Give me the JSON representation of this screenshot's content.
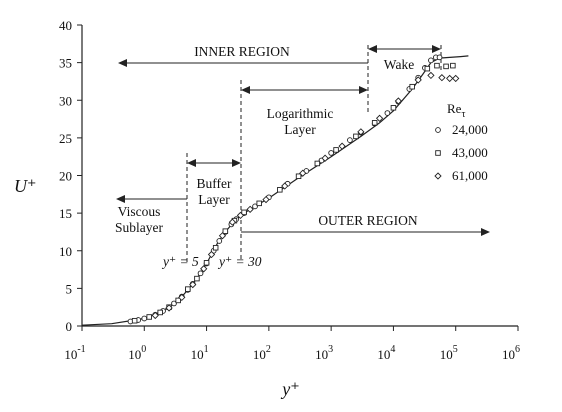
{
  "chart_data": {
    "type": "scatter",
    "xlabel": "y⁺",
    "ylabel": "U⁺",
    "xscale": "log",
    "xlim_exp": [
      -1,
      6
    ],
    "ylim": [
      0,
      40
    ],
    "xticks": [
      {
        "base": "10",
        "exp": "-1"
      },
      {
        "base": "10",
        "exp": "0"
      },
      {
        "base": "10",
        "exp": "1"
      },
      {
        "base": "10",
        "exp": "2"
      },
      {
        "base": "10",
        "exp": "3"
      },
      {
        "base": "10",
        "exp": "4"
      },
      {
        "base": "10",
        "exp": "5"
      },
      {
        "base": "10",
        "exp": "6"
      }
    ],
    "yticks": [
      "0",
      "5",
      "10",
      "15",
      "20",
      "25",
      "30",
      "35",
      "40"
    ],
    "grid": false,
    "legend": {
      "title_main": "Re",
      "title_sub": "τ",
      "entries": [
        {
          "label": "24,000",
          "marker": "circle"
        },
        {
          "label": "43,000",
          "marker": "square"
        },
        {
          "label": "61,000",
          "marker": "diamond"
        }
      ],
      "position": "right"
    },
    "annotations": {
      "inner_region": "INNER REGION",
      "outer_region": "OUTER REGION",
      "wake": "Wake",
      "log_layer_1": "Logarithmic",
      "log_layer_2": "Layer",
      "buffer_1": "Buffer",
      "buffer_2": "Layer",
      "viscous_1": "Viscous",
      "viscous_2": "Sublayer",
      "yplus5": "y⁺ = 5",
      "yplus30": "y⁺ = 30"
    },
    "boundaries": {
      "viscous_buffer": 5,
      "buffer_log": 30,
      "log_wake": 3500,
      "wake_end": 45000
    },
    "series": [
      {
        "label": "24,000",
        "marker": "circle",
        "points": [
          [
            0.6,
            0.6
          ],
          [
            0.8,
            0.8
          ],
          [
            1.0,
            1.0
          ],
          [
            1.5,
            1.5
          ],
          [
            2,
            2
          ],
          [
            3,
            3
          ],
          [
            4,
            3.9
          ],
          [
            5,
            4.8
          ],
          [
            6,
            5.6
          ],
          [
            8,
            7.0
          ],
          [
            10,
            8.3
          ],
          [
            13,
            10.0
          ],
          [
            16,
            11.3
          ],
          [
            20,
            12.5
          ],
          [
            25,
            13.5
          ],
          [
            30,
            14.2
          ],
          [
            40,
            15.0
          ],
          [
            60,
            15.9
          ],
          [
            100,
            17.1
          ],
          [
            200,
            18.9
          ],
          [
            400,
            20.6
          ],
          [
            700,
            22.0
          ],
          [
            1000,
            23.0
          ],
          [
            2000,
            24.7
          ],
          [
            3000,
            25.7
          ],
          [
            5000,
            26.9
          ],
          [
            8000,
            28.3
          ],
          [
            12000,
            29.8
          ],
          [
            18000,
            31.5
          ],
          [
            25000,
            33.0
          ],
          [
            32000,
            34.3
          ],
          [
            40000,
            35.3
          ],
          [
            48000,
            35.7
          ],
          [
            55000,
            35.7
          ]
        ]
      },
      {
        "label": "43,000",
        "marker": "square",
        "points": [
          [
            0.7,
            0.7
          ],
          [
            1.2,
            1.2
          ],
          [
            1.8,
            1.8
          ],
          [
            2.5,
            2.5
          ],
          [
            3.5,
            3.4
          ],
          [
            5,
            4.9
          ],
          [
            7,
            6.3
          ],
          [
            10,
            8.4
          ],
          [
            14,
            10.4
          ],
          [
            20,
            12.6
          ],
          [
            28,
            14.0
          ],
          [
            40,
            15.1
          ],
          [
            70,
            16.3
          ],
          [
            150,
            18.1
          ],
          [
            300,
            19.9
          ],
          [
            600,
            21.6
          ],
          [
            1200,
            23.4
          ],
          [
            2500,
            25.2
          ],
          [
            5000,
            27.0
          ],
          [
            10000,
            29.0
          ],
          [
            20000,
            31.8
          ],
          [
            35000,
            34.2
          ],
          [
            50000,
            34.6
          ],
          [
            70000,
            34.5
          ],
          [
            90000,
            34.6
          ]
        ]
      },
      {
        "label": "61,000",
        "marker": "diamond",
        "points": [
          [
            1.5,
            1.4
          ],
          [
            2.5,
            2.4
          ],
          [
            4,
            3.8
          ],
          [
            6,
            5.5
          ],
          [
            9,
            7.6
          ],
          [
            12,
            9.5
          ],
          [
            18,
            12.0
          ],
          [
            26,
            13.8
          ],
          [
            35,
            14.7
          ],
          [
            50,
            15.5
          ],
          [
            90,
            16.8
          ],
          [
            180,
            18.6
          ],
          [
            350,
            20.3
          ],
          [
            800,
            22.3
          ],
          [
            1500,
            23.9
          ],
          [
            3000,
            25.8
          ],
          [
            6000,
            27.6
          ],
          [
            12000,
            29.9
          ],
          [
            25000,
            32.7
          ],
          [
            40000,
            33.3
          ],
          [
            60000,
            33.0
          ],
          [
            80000,
            32.9
          ],
          [
            100000,
            32.9
          ]
        ]
      }
    ],
    "fit_curve": [
      [
        0.1,
        0.1
      ],
      [
        0.3,
        0.3
      ],
      [
        1,
        1
      ],
      [
        2,
        2
      ],
      [
        3,
        3
      ],
      [
        4,
        3.9
      ],
      [
        5,
        4.8
      ],
      [
        7,
        6.3
      ],
      [
        10,
        8.3
      ],
      [
        15,
        11.0
      ],
      [
        20,
        12.5
      ],
      [
        30,
        14.2
      ],
      [
        40,
        15.0
      ],
      [
        60,
        15.9
      ],
      [
        100,
        17.0
      ],
      [
        300,
        19.7
      ],
      [
        1000,
        22.5
      ],
      [
        3000,
        25.2
      ],
      [
        6000,
        27.0
      ],
      [
        10000,
        28.6
      ],
      [
        20000,
        31.5
      ],
      [
        30000,
        33.5
      ],
      [
        40000,
        35.0
      ],
      [
        55000,
        35.6
      ],
      [
        80000,
        35.7
      ],
      [
        120000,
        35.8
      ],
      [
        160000,
        35.9
      ]
    ]
  }
}
